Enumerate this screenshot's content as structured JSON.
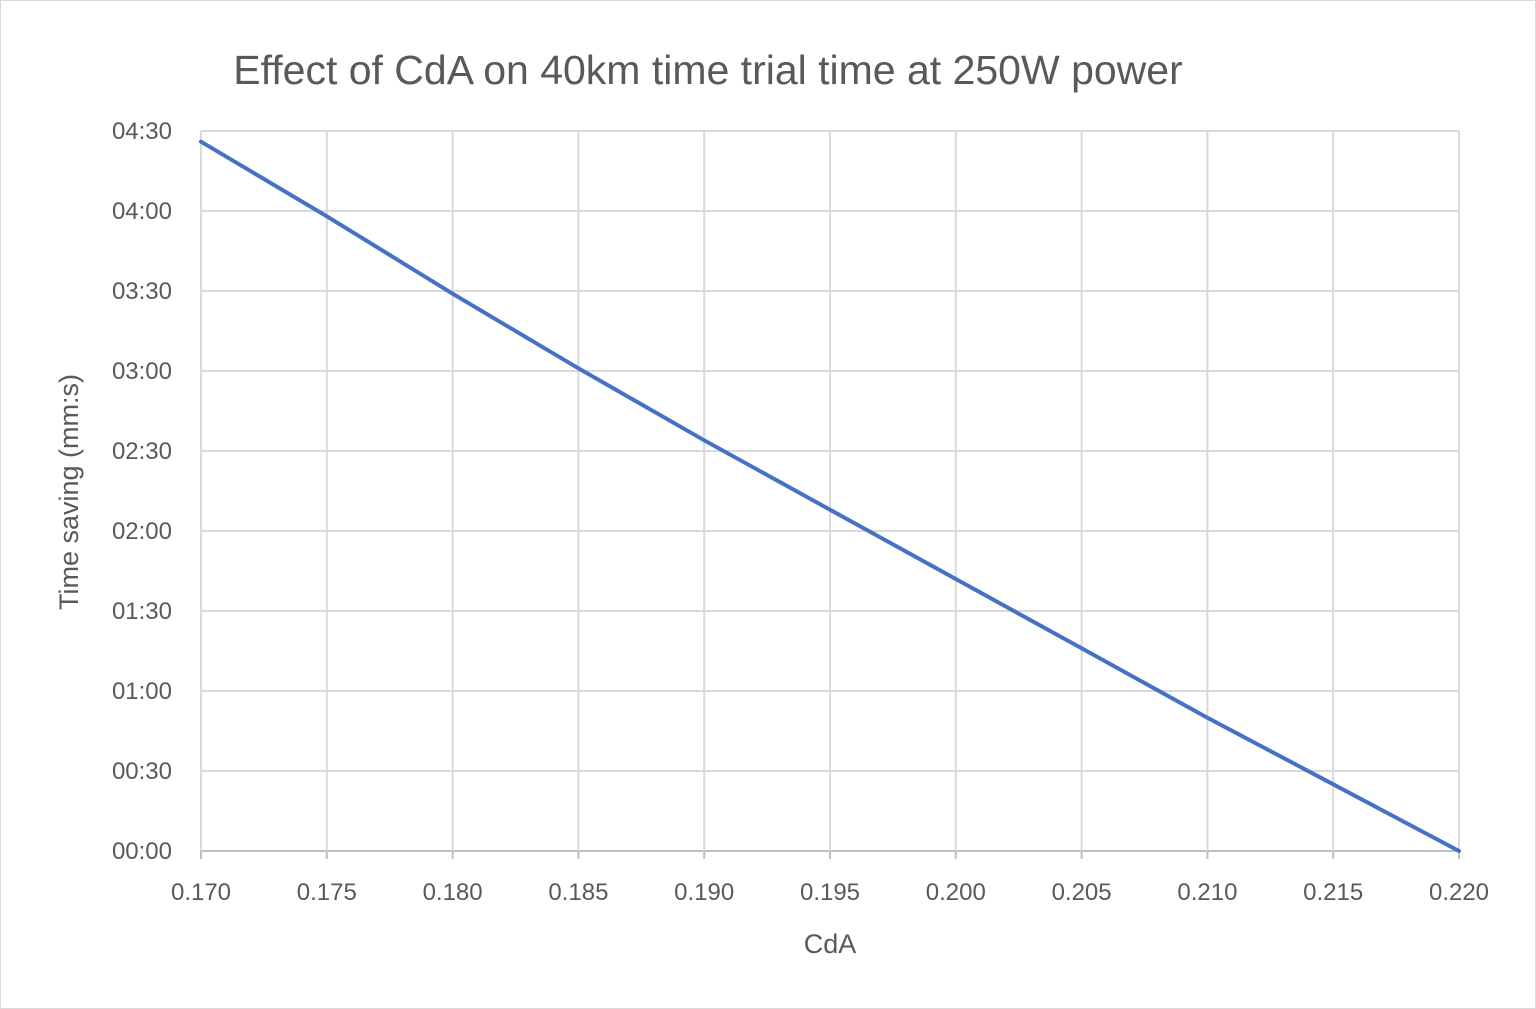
{
  "chart_data": {
    "type": "line",
    "title": "Effect of CdA on 40km time trial time at 250W power",
    "xlabel": "CdA",
    "ylabel": "Time saving (mm:s)",
    "xlim": [
      0.17,
      0.22
    ],
    "ylim_seconds": [
      0,
      270
    ],
    "x_ticks": [
      0.17,
      0.175,
      0.18,
      0.185,
      0.19,
      0.195,
      0.2,
      0.205,
      0.21,
      0.215,
      0.22
    ],
    "x_tick_labels": [
      "0.170",
      "0.175",
      "0.180",
      "0.185",
      "0.190",
      "0.195",
      "0.200",
      "0.205",
      "0.210",
      "0.215",
      "0.220"
    ],
    "y_ticks_seconds": [
      0,
      30,
      60,
      90,
      120,
      150,
      180,
      210,
      240,
      270
    ],
    "y_tick_labels": [
      "00:00",
      "00:30",
      "01:00",
      "01:30",
      "02:00",
      "02:30",
      "03:00",
      "03:30",
      "04:00",
      "04:30"
    ],
    "grid": true,
    "series": [
      {
        "name": "Time saving",
        "color": "#4472c4",
        "x": [
          0.17,
          0.175,
          0.18,
          0.185,
          0.19,
          0.195,
          0.2,
          0.205,
          0.21,
          0.215,
          0.22
        ],
        "y_seconds": [
          266,
          238,
          209,
          181,
          154,
          128,
          102,
          76,
          50,
          25,
          0
        ]
      }
    ]
  }
}
